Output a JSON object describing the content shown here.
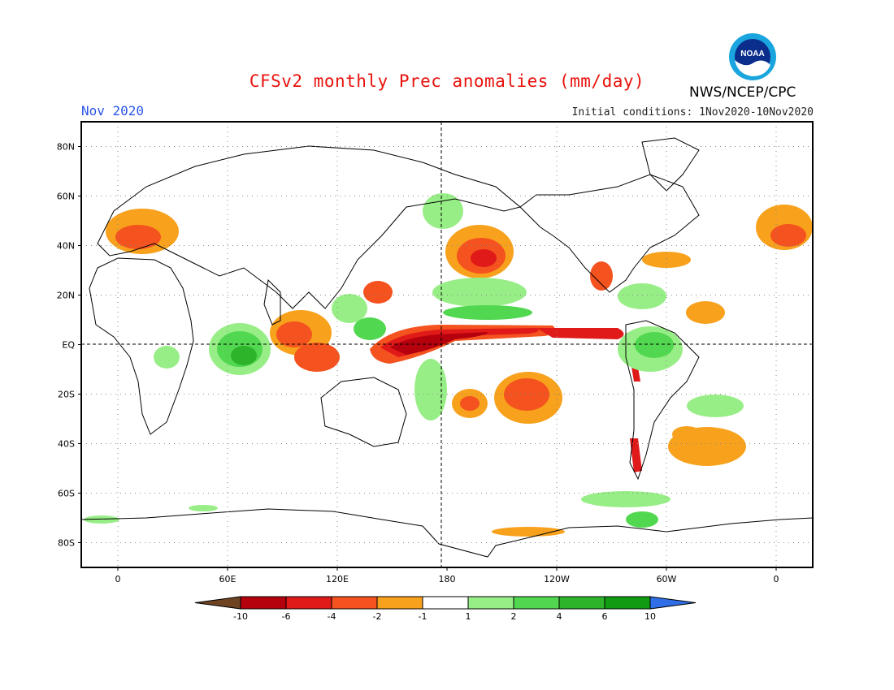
{
  "header": {
    "title": "CFSv2 monthly Prec anomalies (mm/day)",
    "month": "Nov 2020",
    "initial_conditions": "Initial conditions: 1Nov2020-10Nov2020",
    "agency": "NWS/NCEP/CPC",
    "logo_text": "NOAA"
  },
  "map": {
    "lat_labels": [
      "80N",
      "60N",
      "40N",
      "20N",
      "EQ",
      "20S",
      "40S",
      "60S",
      "80S"
    ],
    "lat_values": [
      80,
      60,
      40,
      20,
      0,
      -20,
      -40,
      -60,
      -80
    ],
    "lon_labels": [
      "0",
      "60E",
      "120E",
      "180",
      "120W",
      "60W",
      "0"
    ],
    "lon_values": [
      0,
      60,
      120,
      180,
      240,
      300,
      360
    ]
  },
  "colorbar": {
    "labels": [
      "-10",
      "-6",
      "-4",
      "-2",
      "-1",
      "1",
      "2",
      "4",
      "6",
      "10"
    ],
    "colors": [
      "#6e4422",
      "#b5000e",
      "#e01919",
      "#f4521e",
      "#f8a11c",
      "#ffffff",
      "#98ee86",
      "#52d850",
      "#2db42b",
      "#119b13",
      "#2f6ee6"
    ]
  },
  "colors": {
    "dry_dark": "#b5000e",
    "dry_red": "#e01919",
    "dry_orange": "#f4521e",
    "dry_light": "#f8a11c",
    "wet_light": "#98ee86",
    "wet_mid": "#52d850",
    "wet_dark": "#2db42b",
    "wet_darker": "#119b13"
  }
}
